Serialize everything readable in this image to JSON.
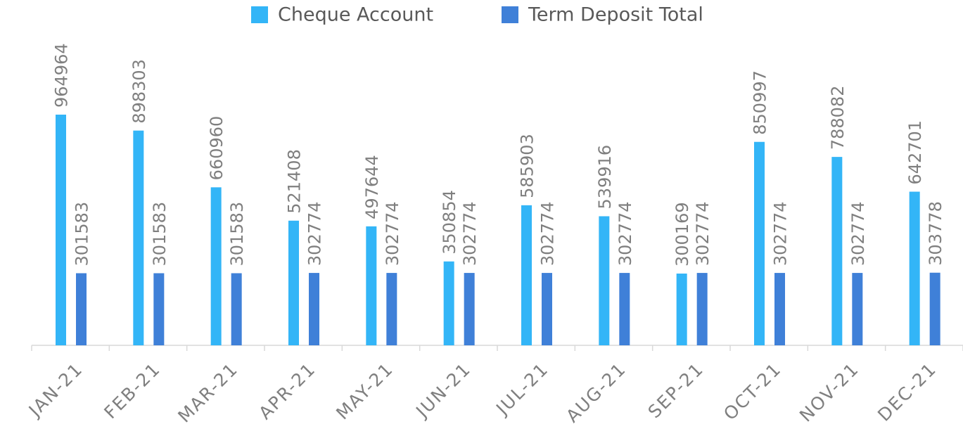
{
  "chart_data": {
    "type": "bar",
    "categories": [
      "JAN-21",
      "FEB-21",
      "MAR-21",
      "APR-21",
      "MAY-21",
      "JUN-21",
      "JUL-21",
      "AUG-21",
      "SEP-21",
      "OCT-21",
      "NOV-21",
      "DEC-21"
    ],
    "series": [
      {
        "name": "Cheque Account",
        "color": "#33b5f7",
        "values": [
          964964,
          898303,
          660960,
          521408,
          497644,
          350854,
          585903,
          539916,
          300169,
          850997,
          788082,
          642701
        ]
      },
      {
        "name": "Term Deposit Total",
        "color": "#3f80d8",
        "values": [
          301583,
          301583,
          301583,
          302774,
          302774,
          302774,
          302774,
          302774,
          302774,
          302774,
          302774,
          303778
        ]
      }
    ],
    "legend": "top"
  }
}
